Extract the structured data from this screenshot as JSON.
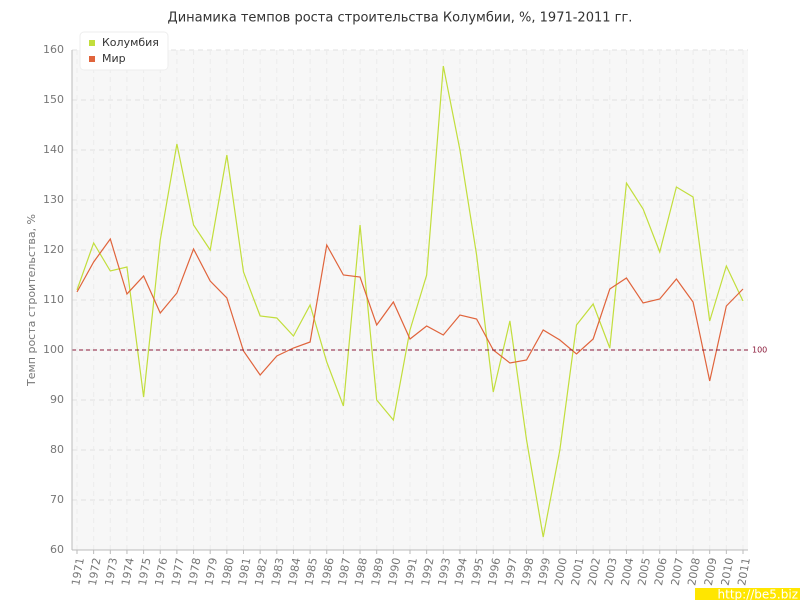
{
  "chart_data": {
    "type": "line",
    "title": "Динамика темпов роста строительства Колумбии, %, 1971-2011 гг.",
    "y_label": "Темп роста строительства, %",
    "x": [
      1971,
      1972,
      1973,
      1974,
      1975,
      1976,
      1977,
      1978,
      1979,
      1980,
      1981,
      1982,
      1983,
      1984,
      1985,
      1986,
      1987,
      1988,
      1989,
      1990,
      1991,
      1992,
      1993,
      1994,
      1995,
      1996,
      1997,
      1998,
      1999,
      2000,
      2001,
      2002,
      2003,
      2004,
      2005,
      2006,
      2007,
      2008,
      2009,
      2010,
      2011
    ],
    "series": [
      {
        "name": "Колумбия",
        "color": "#c2de3c",
        "values": [
          112,
          121.4,
          115.8,
          116.6,
          90.6,
          122,
          141.2,
          125,
          120,
          139,
          115.6,
          106.8,
          106.4,
          102.8,
          109,
          97.6,
          88.8,
          125,
          90,
          86,
          104,
          115,
          156.8,
          140,
          119,
          91.6,
          105.8,
          82,
          62.6,
          80,
          105,
          109.2,
          100.4,
          133.4,
          128.2,
          119.6,
          132.6,
          130.6,
          105.8,
          116.8,
          109.8
        ]
      },
      {
        "name": "Мир",
        "color": "#e0643c",
        "values": [
          111.6,
          117.6,
          122.2,
          111.2,
          114.8,
          107.4,
          111.4,
          120.2,
          113.8,
          110.4,
          99.8,
          95,
          98.8,
          100.4,
          101.6,
          121,
          115,
          114.6,
          105,
          109.6,
          102.2,
          104.8,
          103,
          107,
          106.2,
          100,
          97.4,
          98,
          104,
          102,
          99.2,
          102.2,
          112.2,
          114.4,
          109.4,
          110.2,
          114.2,
          109.6,
          93.8,
          108.8,
          112.2
        ]
      }
    ],
    "xlim": [
      1971,
      2011
    ],
    "xticks": [
      1971,
      1972,
      1973,
      1974,
      1975,
      1976,
      1977,
      1978,
      1979,
      1980,
      1981,
      1982,
      1983,
      1984,
      1985,
      1986,
      1987,
      1988,
      1989,
      1990,
      1991,
      1992,
      1993,
      1994,
      1995,
      1996,
      1997,
      1998,
      1999,
      2000,
      2001,
      2002,
      2003,
      2004,
      2005,
      2006,
      2007,
      2008,
      2009,
      2010,
      2011
    ],
    "ylim": [
      60,
      160
    ],
    "yticks": [
      60,
      70,
      80,
      90,
      100,
      110,
      120,
      130,
      140,
      150,
      160
    ],
    "reference_line": 100,
    "reference_color": "#8b1a3a",
    "grid": true,
    "legend_position": "top-left",
    "watermark": "http://be5.biz"
  }
}
